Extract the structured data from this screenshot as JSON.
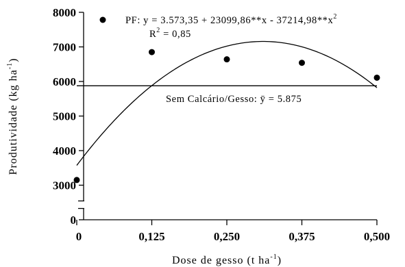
{
  "chart_data": {
    "type": "scatter",
    "xlabel": "Dose de gesso (t ha",
    "xlabel_sup": "-1",
    "xlabel_tail": ")",
    "ylabel": "Produtividade (kg ha",
    "ylabel_sup": "-1",
    "ylabel_tail": ")",
    "x_ticks": [
      0,
      0.125,
      0.25,
      0.375,
      0.5
    ],
    "x_tick_labels": [
      "0",
      "0,125",
      "0,250",
      "0,375",
      "0,500"
    ],
    "y_ticks": [
      0,
      3000,
      4000,
      5000,
      6000,
      7000,
      8000
    ],
    "y_tick_labels": [
      "0",
      "3000",
      "4000",
      "5000",
      "6000",
      "7000",
      "8000"
    ],
    "y_axis_break": [
      500,
      2500
    ],
    "xlim": [
      0,
      0.5
    ],
    "ylim": [
      0,
      8000
    ],
    "grid": false,
    "series": [
      {
        "name": "PF",
        "marker": "filled-circle",
        "x": [
          0,
          0.125,
          0.25,
          0.375,
          0.5
        ],
        "y": [
          3150,
          6850,
          6640,
          6540,
          6110
        ]
      }
    ],
    "fits": [
      {
        "type": "quadratic",
        "coefficients": [
          3573.35,
          23099.86,
          -37214.98
        ],
        "equation_prefix": "PF: y = 3.573,35 + 23099,86**x - 37214,98**x",
        "equation_sup": "2",
        "r2_prefix": "R",
        "r2_sup": "2",
        "r2_value": " = 0,85"
      },
      {
        "type": "constant",
        "value": 5875,
        "label": "Sem Calcário/Gesso: ȳ = 5.875"
      }
    ],
    "legend_placement": "top"
  },
  "colors": {
    "ink": "#000000",
    "background": "#ffffff"
  }
}
